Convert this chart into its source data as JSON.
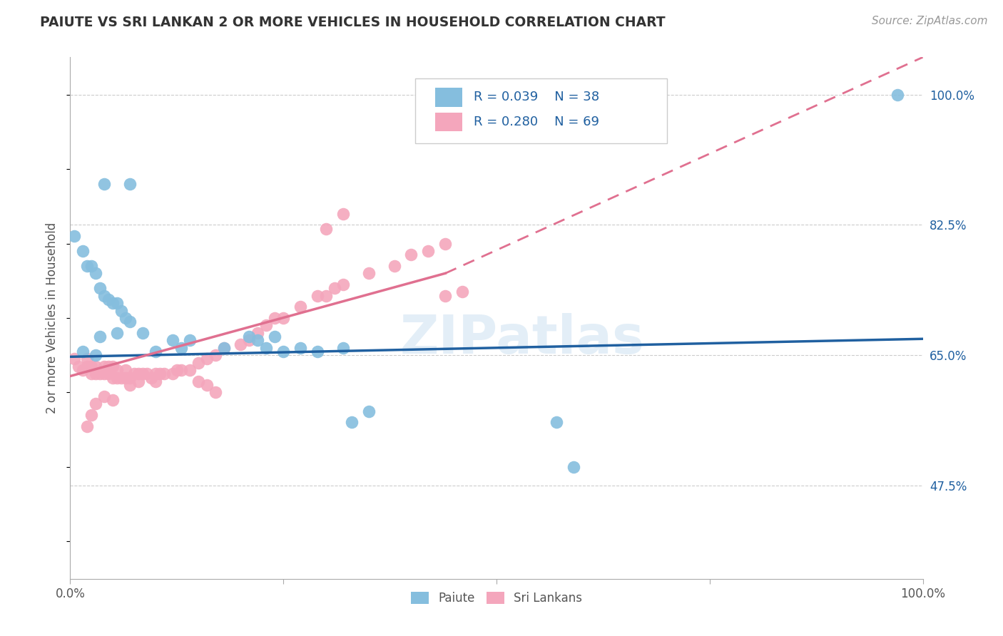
{
  "title": "PAIUTE VS SRI LANKAN 2 OR MORE VEHICLES IN HOUSEHOLD CORRELATION CHART",
  "source": "Source: ZipAtlas.com",
  "ylabel": "2 or more Vehicles in Household",
  "xlim": [
    0,
    1.0
  ],
  "ylim": [
    0.35,
    1.05
  ],
  "ytick_labels_right": [
    "47.5%",
    "65.0%",
    "82.5%",
    "100.0%"
  ],
  "ytick_vals_right": [
    0.475,
    0.65,
    0.825,
    1.0
  ],
  "hlines": [
    0.475,
    0.65,
    0.825,
    1.0
  ],
  "paiute_color": "#85bede",
  "srilankan_color": "#f4a6bc",
  "trendline_paiute_color": "#2060a0",
  "trendline_srilankan_color": "#e07090",
  "paiute_R": 0.039,
  "paiute_N": 38,
  "srilankan_R": 0.28,
  "srilankan_N": 69,
  "legend_text_color": "#2060a0",
  "watermark": "ZIPatlas",
  "paiute_x": [
    0.04,
    0.07,
    0.005,
    0.015,
    0.02,
    0.025,
    0.03,
    0.035,
    0.04,
    0.045,
    0.05,
    0.055,
    0.06,
    0.065,
    0.07,
    0.015,
    0.03,
    0.035,
    0.055,
    0.085,
    0.1,
    0.12,
    0.13,
    0.14,
    0.18,
    0.21,
    0.22,
    0.23,
    0.24,
    0.25,
    0.27,
    0.29,
    0.32,
    0.33,
    0.35,
    0.57,
    0.59,
    0.97
  ],
  "paiute_y": [
    0.88,
    0.88,
    0.81,
    0.79,
    0.77,
    0.77,
    0.76,
    0.74,
    0.73,
    0.725,
    0.72,
    0.72,
    0.71,
    0.7,
    0.695,
    0.655,
    0.65,
    0.675,
    0.68,
    0.68,
    0.655,
    0.67,
    0.66,
    0.67,
    0.66,
    0.675,
    0.67,
    0.66,
    0.675,
    0.655,
    0.66,
    0.655,
    0.66,
    0.56,
    0.575,
    0.56,
    0.5,
    1.0
  ],
  "srilankan_x": [
    0.005,
    0.01,
    0.015,
    0.02,
    0.02,
    0.025,
    0.025,
    0.03,
    0.03,
    0.035,
    0.04,
    0.04,
    0.045,
    0.045,
    0.05,
    0.05,
    0.055,
    0.055,
    0.06,
    0.065,
    0.065,
    0.07,
    0.07,
    0.075,
    0.08,
    0.08,
    0.085,
    0.09,
    0.095,
    0.1,
    0.1,
    0.105,
    0.11,
    0.12,
    0.125,
    0.13,
    0.14,
    0.15,
    0.16,
    0.17,
    0.18,
    0.2,
    0.21,
    0.22,
    0.23,
    0.24,
    0.25,
    0.27,
    0.29,
    0.3,
    0.31,
    0.32,
    0.35,
    0.38,
    0.4,
    0.42,
    0.44,
    0.3,
    0.32,
    0.44,
    0.46,
    0.05,
    0.04,
    0.03,
    0.025,
    0.02,
    0.15,
    0.16,
    0.17
  ],
  "srilankan_y": [
    0.645,
    0.635,
    0.63,
    0.635,
    0.645,
    0.635,
    0.625,
    0.635,
    0.625,
    0.625,
    0.635,
    0.625,
    0.635,
    0.625,
    0.635,
    0.62,
    0.63,
    0.62,
    0.62,
    0.63,
    0.62,
    0.62,
    0.61,
    0.625,
    0.625,
    0.615,
    0.625,
    0.625,
    0.62,
    0.625,
    0.615,
    0.625,
    0.625,
    0.625,
    0.63,
    0.63,
    0.63,
    0.64,
    0.645,
    0.65,
    0.66,
    0.665,
    0.67,
    0.68,
    0.69,
    0.7,
    0.7,
    0.715,
    0.73,
    0.73,
    0.74,
    0.745,
    0.76,
    0.77,
    0.785,
    0.79,
    0.8,
    0.82,
    0.84,
    0.73,
    0.735,
    0.59,
    0.595,
    0.585,
    0.57,
    0.555,
    0.615,
    0.61,
    0.6
  ],
  "trendline_paiute_x0": 0.0,
  "trendline_paiute_x1": 1.0,
  "trendline_paiute_y0": 0.648,
  "trendline_paiute_y1": 0.672,
  "trendline_srilankan_x0": 0.0,
  "trendline_srilankan_x1": 0.44,
  "trendline_srilankan_xd": 1.0,
  "trendline_srilankan_y0": 0.622,
  "trendline_srilankan_y1": 0.76,
  "trendline_srilankan_yd": 1.05
}
